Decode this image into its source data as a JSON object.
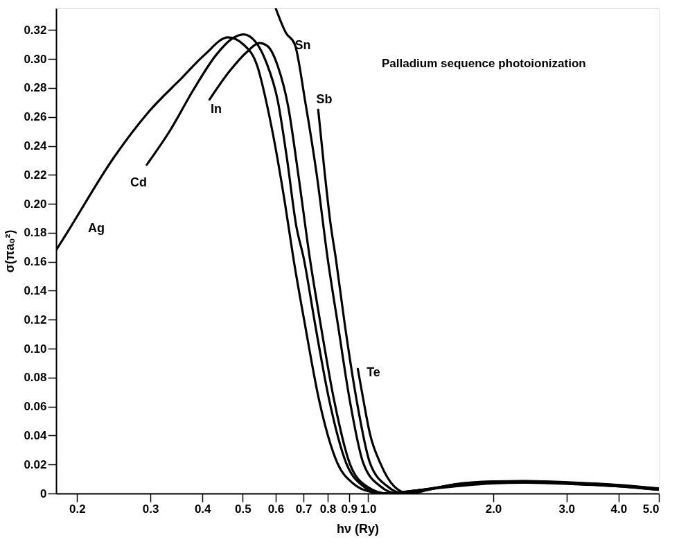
{
  "chart_data": {
    "type": "line",
    "xlabel": "hν (Ry)",
    "ylabel": "σ(πa₀²)",
    "log": "x",
    "grid": false,
    "legend": false,
    "marker": "none",
    "line_style": "solid",
    "xlim": [
      0.178,
      5.0
    ],
    "ylim": [
      0,
      0.335
    ],
    "xticks": [
      0.2,
      0.3,
      0.4,
      0.5,
      0.6,
      0.7,
      0.8,
      0.9,
      {
        "value": 1,
        "label": "1.0"
      },
      {
        "value": 2,
        "label": "2.0"
      },
      {
        "value": 3,
        "label": "3.0"
      },
      {
        "value": 4,
        "label": "4.0"
      },
      {
        "value": 5,
        "label": "5.0"
      }
    ],
    "yticks": [
      0,
      0.02,
      0.04,
      0.06,
      0.08,
      {
        "value": 0.1,
        "label": "0.10"
      },
      0.12,
      0.14,
      0.16,
      0.18,
      {
        "value": 0.2,
        "label": "0.20"
      },
      0.22,
      0.24,
      0.26,
      0.28,
      {
        "value": 0.3,
        "label": "0.30"
      },
      0.32
    ],
    "series": [
      {
        "color": "#000000",
        "x": [
          0.178,
          0.19,
          0.245,
          0.296,
          0.357,
          0.405,
          0.461,
          0.502,
          0.542,
          0.569,
          0.591,
          0.631,
          0.662,
          0.706,
          0.762,
          0.844,
          0.92,
          1.02,
          1.112,
          1.3,
          1.622,
          2.0,
          2.368,
          3.085,
          4.02,
          4.98
        ],
        "values": [
          0.168,
          0.181,
          0.232,
          0.263,
          0.287,
          0.303,
          0.315,
          0.31,
          0.295,
          0.271,
          0.248,
          0.201,
          0.162,
          0.116,
          0.065,
          0.021,
          0.007,
          0.001,
          0,
          0.002,
          0.005,
          0.007,
          0.0075,
          0.0065,
          0.0048,
          0.0025
        ]
      },
      {
        "color": "#000000",
        "x": [
          0.294,
          0.335,
          0.381,
          0.432,
          0.471,
          0.502,
          0.536,
          0.569,
          0.607,
          0.638,
          0.672,
          0.701,
          0.747,
          0.806,
          0.886,
          0.974,
          1.07,
          1.3,
          1.622,
          2.0,
          2.368,
          3.085,
          4.02,
          4.98
        ],
        "values": [
          0.227,
          0.251,
          0.279,
          0.303,
          0.314,
          0.317,
          0.312,
          0.298,
          0.271,
          0.232,
          0.185,
          0.162,
          0.116,
          0.065,
          0.021,
          0.005,
          0,
          0.002,
          0.0055,
          0.0073,
          0.0078,
          0.0068,
          0.005,
          0.0027
        ]
      },
      {
        "color": "#000000",
        "x": [
          0.416,
          0.466,
          0.512,
          0.548,
          0.573,
          0.607,
          0.643,
          0.68,
          0.725,
          0.77,
          0.828,
          0.903,
          0.992,
          1.112,
          1.3,
          1.622,
          2.0,
          2.368,
          3.085,
          4.02,
          4.98
        ],
        "values": [
          0.272,
          0.292,
          0.305,
          0.311,
          0.309,
          0.295,
          0.267,
          0.22,
          0.162,
          0.116,
          0.065,
          0.021,
          0.005,
          0,
          0.002,
          0.0058,
          0.0077,
          0.008,
          0.007,
          0.0052,
          0.0029
        ]
      },
      {
        "color": "#000000",
        "x": [
          0.6,
          0.635,
          0.667,
          0.706,
          0.753,
          0.8,
          0.847,
          0.903,
          0.974,
          1.07,
          1.177,
          1.3,
          1.622,
          2.0,
          2.368,
          3.085,
          4.02,
          4.98
        ],
        "values": [
          0.335,
          0.318,
          0.31,
          0.271,
          0.22,
          0.162,
          0.116,
          0.065,
          0.021,
          0.005,
          0,
          0.0015,
          0.006,
          0.0079,
          0.0082,
          0.0072,
          0.0054,
          0.0031
        ]
      },
      {
        "color": "#000000",
        "x": [
          0.759,
          0.785,
          0.812,
          0.837,
          0.88,
          0.938,
          1.011,
          1.112,
          1.222,
          1.3,
          1.622,
          2.0,
          2.368,
          3.085,
          4.02,
          4.98
        ],
        "values": [
          0.265,
          0.224,
          0.187,
          0.162,
          0.116,
          0.065,
          0.021,
          0.005,
          0,
          0.001,
          0.0062,
          0.0081,
          0.0084,
          0.0074,
          0.0056,
          0.0033
        ]
      },
      {
        "color": "#000000",
        "x": [
          0.945,
          0.974,
          1.011,
          1.07,
          1.155,
          1.255,
          1.395,
          1.622,
          2.0,
          2.368,
          3.085,
          4.02,
          4.98
        ],
        "values": [
          0.086,
          0.065,
          0.041,
          0.021,
          0.005,
          0,
          0.0025,
          0.0064,
          0.0083,
          0.0086,
          0.0076,
          0.0058,
          0.0035
        ]
      }
    ],
    "annotations": [
      "Palladium sequence photoionization",
      "Ag",
      "Cd",
      "In",
      "Sn",
      "Sb",
      "Te"
    ]
  }
}
